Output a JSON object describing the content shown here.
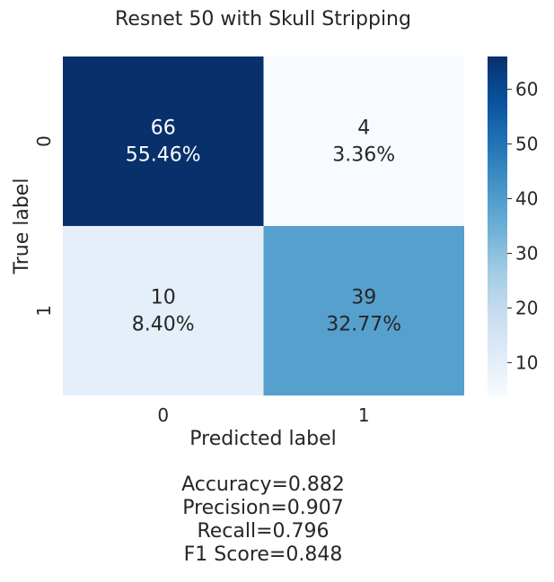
{
  "chart_data": {
    "type": "heatmap",
    "title": "Resnet 50 with Skull Stripping",
    "xlabel": "Predicted label",
    "ylabel": "True label",
    "x_categories": [
      "0",
      "1"
    ],
    "y_categories": [
      "0",
      "1"
    ],
    "values": [
      [
        66,
        4
      ],
      [
        10,
        39
      ]
    ],
    "percent_labels": [
      [
        "55.46%",
        "3.36%"
      ],
      [
        "8.40%",
        "32.77%"
      ]
    ],
    "colormap": "Blues",
    "color_range": [
      4,
      66
    ],
    "colorbar_ticks": [
      10,
      20,
      30,
      40,
      50,
      60
    ]
  },
  "metrics": [
    "Accuracy=0.882",
    "Precision=0.907",
    "Recall=0.796",
    "F1 Score=0.848"
  ]
}
